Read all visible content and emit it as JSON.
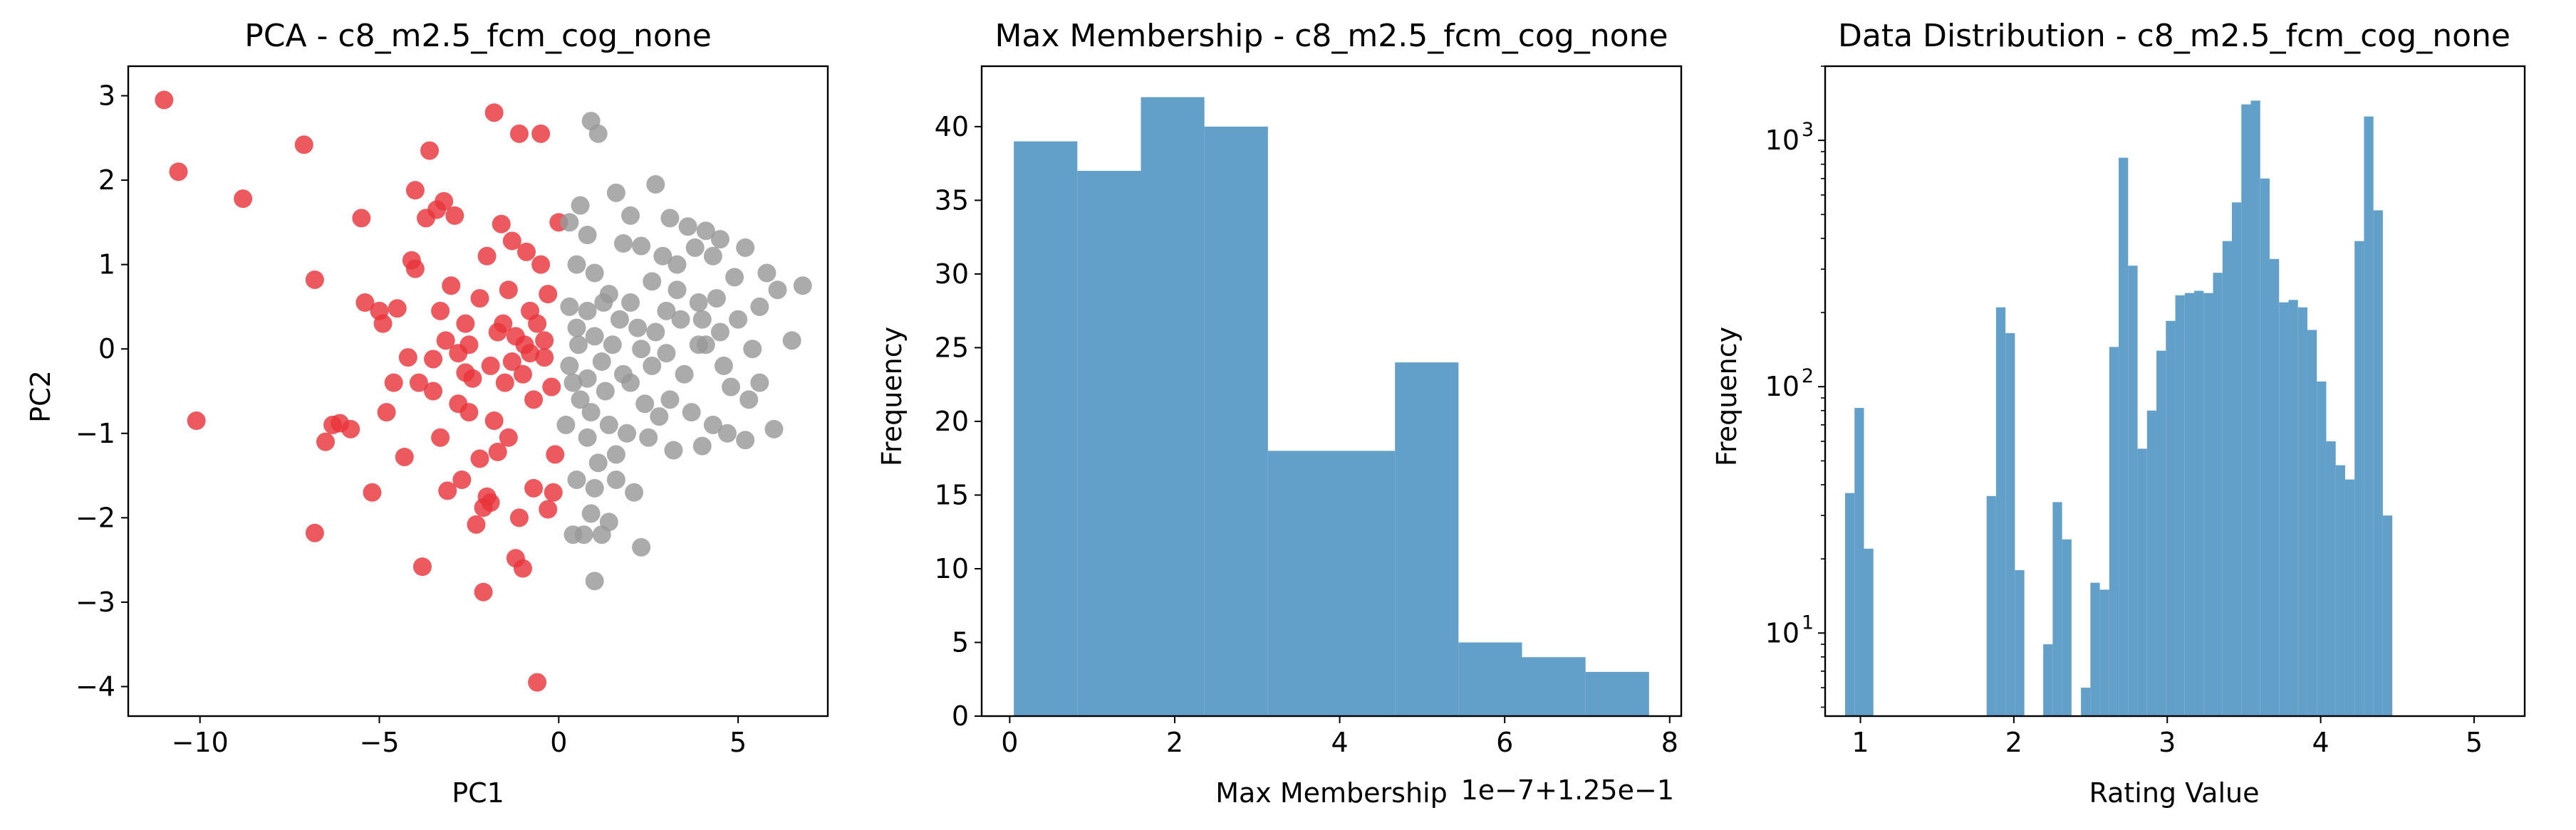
{
  "figure": {
    "title1": "PCA - c8_m2.5_fcm_cog_none",
    "title2": "Max Membership - c8_m2.5_fcm_cog_none",
    "title3": "Data Distribution - c8_m2.5_fcm_cog_none",
    "xlabel1": "PC1",
    "ylabel1": "PC2",
    "xlabel2": "Max Membership",
    "ylabel2": "Frequency",
    "offset2": "1e−7+1.25e−1",
    "xlabel3": "Rating Value",
    "ylabel3": "Frequency"
  },
  "chart_data": [
    {
      "type": "scatter",
      "title": "PCA - c8_m2.5_fcm_cog_none",
      "xlabel": "PC1",
      "ylabel": "PC2",
      "xlim": [
        -12,
        7.5
      ],
      "ylim": [
        -4.35,
        3.35
      ],
      "xticks": [
        -10,
        -5,
        0,
        5
      ],
      "yticks": [
        -4,
        -3,
        -2,
        -1,
        0,
        1,
        2,
        3
      ],
      "grid": false,
      "colors": {
        "red": "#e8343b",
        "gray": "#999999"
      },
      "series": [
        {
          "color": "red",
          "points": [
            [
              -11,
              2.95
            ],
            [
              -10.6,
              2.1
            ],
            [
              -10.1,
              -0.85
            ],
            [
              -8.8,
              1.78
            ],
            [
              -7.1,
              2.42
            ],
            [
              -6.8,
              0.82
            ],
            [
              -6.8,
              -2.18
            ],
            [
              -6.5,
              -1.1
            ],
            [
              -6.3,
              -0.9
            ],
            [
              -6.1,
              -0.88
            ],
            [
              -5.8,
              -0.95
            ],
            [
              -5.5,
              1.55
            ],
            [
              -5.4,
              0.55
            ],
            [
              -5.2,
              -1.7
            ],
            [
              -5,
              0.45
            ],
            [
              -4.9,
              0.3
            ],
            [
              -4.8,
              -0.75
            ],
            [
              -4.6,
              -0.4
            ],
            [
              -4.5,
              0.48
            ],
            [
              -4.3,
              -1.28
            ],
            [
              -4.2,
              -0.1
            ],
            [
              -4,
              1.88
            ],
            [
              -4,
              0.95
            ],
            [
              -3.9,
              -0.4
            ],
            [
              -3.8,
              -2.58
            ],
            [
              -3.7,
              1.55
            ],
            [
              -3.6,
              2.35
            ],
            [
              -3.5,
              -0.5
            ],
            [
              -3.4,
              1.65
            ],
            [
              -3.3,
              -1.05
            ],
            [
              -3.3,
              0.45
            ],
            [
              -3.2,
              1.75
            ],
            [
              -3.1,
              -1.68
            ],
            [
              -3,
              0.75
            ],
            [
              -2.9,
              1.58
            ],
            [
              -2.8,
              -0.05
            ],
            [
              -2.8,
              -0.65
            ],
            [
              -2.7,
              -1.55
            ],
            [
              -2.6,
              0.3
            ],
            [
              -2.5,
              -0.75
            ],
            [
              -2.4,
              -0.35
            ],
            [
              -2.3,
              -2.08
            ],
            [
              -2.2,
              0.6
            ],
            [
              -2.2,
              -1.3
            ],
            [
              -2.1,
              -1.88
            ],
            [
              -2,
              1.1
            ],
            [
              -2,
              -1.75
            ],
            [
              -1.9,
              -0.2
            ],
            [
              -1.8,
              -0.85
            ],
            [
              -1.7,
              -1.22
            ],
            [
              -1.7,
              0.2
            ],
            [
              -1.6,
              1.48
            ],
            [
              -1.5,
              -0.4
            ],
            [
              -1.4,
              0.7
            ],
            [
              -1.3,
              1.28
            ],
            [
              -1.3,
              -0.15
            ],
            [
              -1.2,
              0.15
            ],
            [
              -1.1,
              -2
            ],
            [
              -1,
              -0.3
            ],
            [
              -1,
              -2.6
            ],
            [
              -0.9,
              1.15
            ],
            [
              -0.8,
              -0.05
            ],
            [
              -0.8,
              0.45
            ],
            [
              -0.7,
              -1.65
            ],
            [
              -0.6,
              0.3
            ],
            [
              -0.5,
              2.55
            ],
            [
              -0.5,
              1.0
            ],
            [
              -0.4,
              0.1
            ],
            [
              -0.3,
              0.65
            ],
            [
              -0.3,
              -1.9
            ],
            [
              -0.2,
              -0.45
            ],
            [
              -0.1,
              -1.25
            ],
            [
              0,
              1.5
            ],
            [
              -2.1,
              -2.88
            ],
            [
              -0.6,
              -3.95
            ],
            [
              -1.1,
              2.55
            ],
            [
              -1.8,
              2.8
            ],
            [
              -1.2,
              -2.48
            ],
            [
              -0.4,
              -0.1
            ],
            [
              -3.5,
              -0.12
            ],
            [
              -2.6,
              -0.28
            ],
            [
              -1.4,
              -1.05
            ],
            [
              -0.15,
              -1.7
            ],
            [
              -1.9,
              -1.82
            ],
            [
              -0.7,
              -0.6
            ],
            [
              -2.5,
              0.05
            ],
            [
              -4.1,
              1.05
            ],
            [
              -3.15,
              0.1
            ],
            [
              -1.55,
              0.3
            ],
            [
              -0.95,
              0.05
            ]
          ]
        },
        {
          "color": "gray",
          "points": [
            [
              0.9,
              2.7
            ],
            [
              1.1,
              2.55
            ],
            [
              0.6,
              1.7
            ],
            [
              0.3,
              1.5
            ],
            [
              0.8,
              1.35
            ],
            [
              1.6,
              1.85
            ],
            [
              2,
              1.58
            ],
            [
              2.7,
              1.95
            ],
            [
              3.1,
              1.55
            ],
            [
              3.6,
              1.45
            ],
            [
              4.1,
              1.4
            ],
            [
              4.5,
              1.3
            ],
            [
              0.5,
              1.0
            ],
            [
              1,
              0.9
            ],
            [
              1.8,
              1.25
            ],
            [
              2.3,
              1.22
            ],
            [
              2.9,
              1.1
            ],
            [
              3.3,
              1.0
            ],
            [
              3.8,
              1.2
            ],
            [
              4.3,
              1.1
            ],
            [
              5.2,
              1.2
            ],
            [
              5.8,
              0.9
            ],
            [
              6.1,
              0.7
            ],
            [
              6.8,
              0.75
            ],
            [
              0.3,
              0.5
            ],
            [
              0.8,
              0.45
            ],
            [
              1.4,
              0.65
            ],
            [
              2.0,
              0.55
            ],
            [
              2.6,
              0.8
            ],
            [
              3.3,
              0.7
            ],
            [
              3.9,
              0.55
            ],
            [
              4.4,
              0.6
            ],
            [
              5,
              0.35
            ],
            [
              5.6,
              0.5
            ],
            [
              6.5,
              0.1
            ],
            [
              0.5,
              0.25
            ],
            [
              1.0,
              0.15
            ],
            [
              1.5,
              0.05
            ],
            [
              2.3,
              0.0
            ],
            [
              2.7,
              0.2
            ],
            [
              3.0,
              -0.05
            ],
            [
              3.5,
              -0.3
            ],
            [
              4.1,
              0.05
            ],
            [
              4.6,
              -0.2
            ],
            [
              5.4,
              0.0
            ],
            [
              0.3,
              -0.2
            ],
            [
              0.8,
              -0.35
            ],
            [
              1.3,
              -0.5
            ],
            [
              1.8,
              -0.3
            ],
            [
              2.4,
              -0.65
            ],
            [
              3.1,
              -0.6
            ],
            [
              3.7,
              -0.75
            ],
            [
              4.3,
              -0.9
            ],
            [
              4.8,
              -0.45
            ],
            [
              5.6,
              -0.4
            ],
            [
              0.2,
              -0.9
            ],
            [
              0.8,
              -1.05
            ],
            [
              1.4,
              -0.9
            ],
            [
              1.9,
              -1.0
            ],
            [
              2.5,
              -1.05
            ],
            [
              3.2,
              -1.2
            ],
            [
              4.0,
              -1.15
            ],
            [
              4.7,
              -1.0
            ],
            [
              5.2,
              -1.08
            ],
            [
              6.0,
              -0.95
            ],
            [
              0.5,
              -1.55
            ],
            [
              1.0,
              -1.65
            ],
            [
              1.6,
              -1.55
            ],
            [
              2.1,
              -1.7
            ],
            [
              0.9,
              -1.95
            ],
            [
              1.4,
              -2.05
            ],
            [
              0.7,
              -2.2
            ],
            [
              1.2,
              -2.2
            ],
            [
              0.4,
              -2.2
            ],
            [
              1.0,
              -2.75
            ],
            [
              2.3,
              -2.35
            ],
            [
              0.6,
              -0.6
            ],
            [
              1.2,
              -0.15
            ],
            [
              2.0,
              -0.4
            ],
            [
              2.8,
              -0.8
            ],
            [
              3.4,
              0.35
            ],
            [
              4.0,
              0.35
            ],
            [
              4.9,
              0.85
            ],
            [
              5.3,
              -0.6
            ],
            [
              1.7,
              0.35
            ],
            [
              2.2,
              0.25
            ],
            [
              0.4,
              -0.4
            ],
            [
              2.6,
              -0.2
            ],
            [
              3.0,
              0.45
            ],
            [
              1.1,
              -1.35
            ],
            [
              1.6,
              -1.25
            ],
            [
              0.9,
              -0.75
            ],
            [
              4.5,
              0.2
            ],
            [
              3.9,
              0.05
            ],
            [
              1.25,
              0.55
            ],
            [
              0.55,
              0.05
            ]
          ]
        }
      ]
    },
    {
      "type": "bar",
      "title": "Max Membership - c8_m2.5_fcm_cog_none",
      "xlabel": "Max Membership",
      "ylabel": "Frequency",
      "x_offset_label": "1e−7+1.25e−1",
      "bin_edges": [
        0.05,
        0.82,
        1.59,
        2.36,
        3.13,
        3.9,
        4.67,
        5.44,
        6.21,
        6.98,
        7.75
      ],
      "values": [
        39,
        37,
        42,
        40,
        18,
        18,
        24,
        5,
        4,
        3
      ],
      "xlim": [
        -0.34,
        8.14
      ],
      "ylim": [
        0,
        44.1
      ],
      "xticks": [
        0,
        2,
        4,
        6,
        8
      ],
      "yticks": [
        0,
        5,
        10,
        15,
        20,
        25,
        30,
        35,
        40
      ],
      "color": "#62a0ca",
      "grid": false
    },
    {
      "type": "bar",
      "title": "Data Distribution - c8_m2.5_fcm_cog_none",
      "xlabel": "Rating Value",
      "ylabel": "Frequency",
      "yscale": "log",
      "bin_start": 0.9,
      "bin_width": 0.0615,
      "values": [
        37,
        82,
        22,
        0,
        0,
        0,
        0,
        0,
        0,
        0,
        0,
        0,
        0,
        0,
        0,
        36,
        210,
        165,
        18,
        0,
        0,
        9,
        34,
        24,
        0,
        6,
        16,
        15,
        145,
        850,
        310,
        56,
        80,
        140,
        185,
        235,
        240,
        245,
        240,
        290,
        390,
        560,
        1400,
        1450,
        700,
        330,
        220,
        225,
        210,
        170,
        105,
        60,
        48,
        42,
        390,
        1250,
        520,
        30
      ],
      "xlim": [
        0.77,
        5.33
      ],
      "ylim": [
        4.6,
        2000
      ],
      "xticks": [
        1,
        2,
        3,
        4,
        5
      ],
      "yticks": [
        10,
        100,
        1000
      ],
      "ytick_labels": [
        "10^1",
        "10^2",
        "10^3"
      ],
      "color": "#62a0ca",
      "grid": false
    }
  ]
}
